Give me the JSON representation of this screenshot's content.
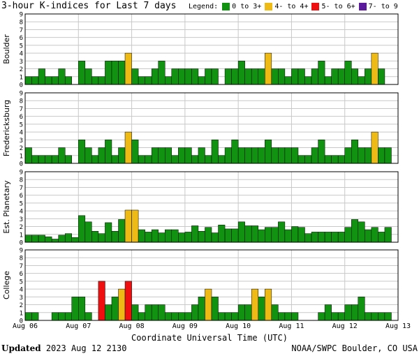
{
  "title": "3-hour K-indices for Last 7 days",
  "legend": {
    "label": "Legend:",
    "items": [
      {
        "label": "0 to 3+",
        "color": "#119311"
      },
      {
        "label": "4- to 4+",
        "color": "#eeba16"
      },
      {
        "label": "5- to 6+",
        "color": "#ee1010"
      },
      {
        "label": "7- to 9",
        "color": "#5b1a9b"
      }
    ]
  },
  "footer": {
    "updated_label": "Updated",
    "updated_value": "2023 Aug 12 2130",
    "credit": "NOAA/SWPC Boulder, CO USA"
  },
  "chart_data": {
    "type": "bar",
    "x_title": "Coordinate Universal Time (UTC)",
    "x_tick_labels": [
      "Aug 06",
      "Aug 07",
      "Aug 08",
      "Aug 09",
      "Aug 10",
      "Aug 11",
      "Aug 12",
      "Aug 13"
    ],
    "y_ticks": [
      "0",
      "1",
      "2",
      "3",
      "4",
      "5",
      "6",
      "7",
      "8",
      "9"
    ],
    "ylim": [
      0,
      9
    ],
    "bins_per_panel": 56,
    "panels": [
      {
        "name": "Boulder",
        "values": [
          1,
          1,
          2,
          1,
          1,
          2,
          1,
          0,
          3,
          2,
          1,
          1,
          3,
          3,
          3,
          4,
          2,
          1,
          1,
          2,
          3,
          1,
          2,
          2,
          2,
          2,
          1,
          2,
          2,
          0,
          2,
          2,
          3,
          2,
          2,
          2,
          4,
          2,
          2,
          1,
          2,
          2,
          1,
          2,
          3,
          1,
          2,
          2,
          3,
          2,
          1,
          2,
          4,
          2,
          0,
          0
        ]
      },
      {
        "name": "Fredericksburg",
        "values": [
          2,
          1,
          1,
          1,
          1,
          2,
          1,
          0,
          3,
          2,
          1,
          2,
          3,
          1,
          2,
          4,
          3,
          1,
          1,
          2,
          2,
          2,
          1,
          2,
          2,
          1,
          2,
          1,
          3,
          1,
          2,
          3,
          2,
          2,
          2,
          2,
          3,
          2,
          2,
          2,
          2,
          1,
          1,
          2,
          3,
          1,
          1,
          1,
          2,
          3,
          2,
          2,
          4,
          2,
          2,
          0
        ]
      },
      {
        "name": "Est. Planetary",
        "values": [
          0.9,
          0.9,
          0.9,
          0.7,
          0.4,
          0.9,
          1.1,
          0.6,
          3.4,
          2.6,
          1.4,
          1.1,
          2.5,
          1.4,
          2.9,
          4.1,
          4.1,
          1.6,
          1.3,
          1.6,
          1.2,
          1.6,
          1.6,
          1.2,
          1.3,
          2.1,
          1.4,
          1.9,
          1.2,
          2.2,
          1.7,
          1.7,
          2.6,
          2.1,
          2.1,
          1.6,
          1.9,
          1.9,
          2.6,
          1.6,
          2.0,
          1.9,
          1.1,
          1.3,
          1.3,
          1.3,
          1.3,
          1.3,
          1.9,
          2.9,
          2.6,
          1.6,
          1.9,
          1.3,
          1.9,
          0
        ]
      },
      {
        "name": "College",
        "values": [
          1,
          1,
          0,
          0,
          1,
          1,
          1,
          3,
          3,
          1,
          0,
          5,
          2,
          3,
          4,
          5,
          2,
          1,
          2,
          2,
          2,
          1,
          1,
          1,
          1,
          2,
          3,
          4,
          3,
          1,
          1,
          1,
          2,
          2,
          4,
          3,
          4,
          2,
          1,
          1,
          1,
          0,
          0,
          0,
          1,
          2,
          1,
          1,
          2,
          2,
          3,
          1,
          1,
          1,
          1,
          0
        ]
      }
    ]
  }
}
